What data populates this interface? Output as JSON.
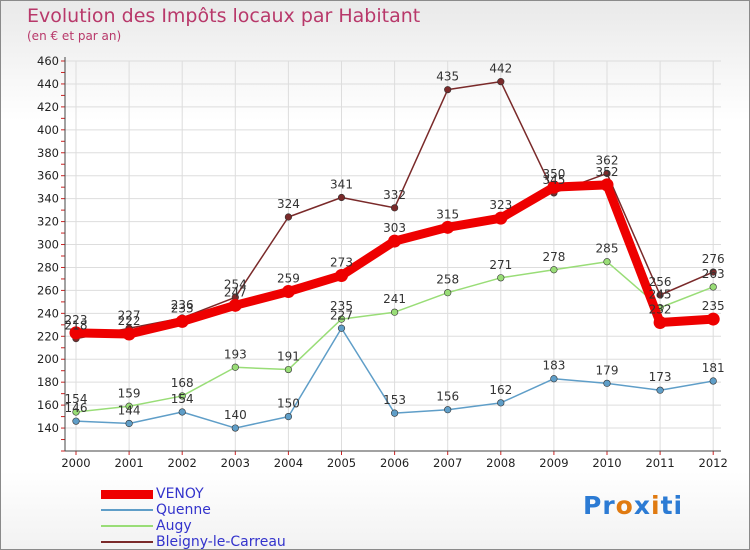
{
  "header": {
    "title": "Evolution des Impôts locaux par Habitant",
    "subtitle": "(en € et par an)"
  },
  "colors": {
    "title": "#b8386a",
    "axis_labels": "#222222",
    "grid": "#dddddd",
    "axis_tick_marks": "#cc2222"
  },
  "chart_data": {
    "type": "line",
    "title": "Evolution des Impôts locaux par Habitant",
    "subtitle": "(en € et par an)",
    "xlabel": "",
    "ylabel": "",
    "x": [
      "2000",
      "2001",
      "2002",
      "2003",
      "2004",
      "2005",
      "2006",
      "2007",
      "2008",
      "2009",
      "2010",
      "2011",
      "2012"
    ],
    "ylim": [
      120,
      460
    ],
    "yticks": [
      140,
      160,
      180,
      200,
      220,
      240,
      260,
      280,
      300,
      320,
      340,
      360,
      380,
      400,
      420,
      440,
      460
    ],
    "grid": true,
    "legend_position": "bottom-left",
    "series": [
      {
        "name": "VENOY",
        "color": "#ee0000",
        "values": [
          223,
          222,
          233,
          247,
          259,
          273,
          303,
          315,
          323,
          350,
          352,
          232,
          235
        ]
      },
      {
        "name": "Quenne",
        "color": "#5f9ec8",
        "values": [
          146,
          144,
          154,
          140,
          150,
          227,
          153,
          156,
          162,
          183,
          179,
          173,
          181
        ]
      },
      {
        "name": "Augy",
        "color": "#99dd77",
        "values": [
          154,
          159,
          168,
          193,
          191,
          235,
          241,
          258,
          271,
          278,
          285,
          245,
          263
        ]
      },
      {
        "name": "Bleigny-le-Carreau",
        "color": "#7a2a2a",
        "values": [
          218,
          227,
          236,
          254,
          324,
          341,
          332,
          435,
          442,
          345,
          362,
          256,
          276
        ]
      }
    ]
  },
  "legend": {
    "items": [
      {
        "label": "VENOY",
        "color": "#ee0000",
        "width": 9
      },
      {
        "label": "Quenne",
        "color": "#5f9ec8",
        "width": 2
      },
      {
        "label": "Augy",
        "color": "#99dd77",
        "width": 2
      },
      {
        "label": "Bleigny-le-Carreau",
        "color": "#7a2a2a",
        "width": 2
      }
    ],
    "label_color": "#3333cc"
  },
  "logo": {
    "text": "Proxiti",
    "letter_colors": [
      "#2c7bd4",
      "#2c7bd4",
      "#e07a10",
      "#2c7bd4",
      "#e07a10",
      "#2c7bd4",
      "#2c7bd4"
    ]
  }
}
